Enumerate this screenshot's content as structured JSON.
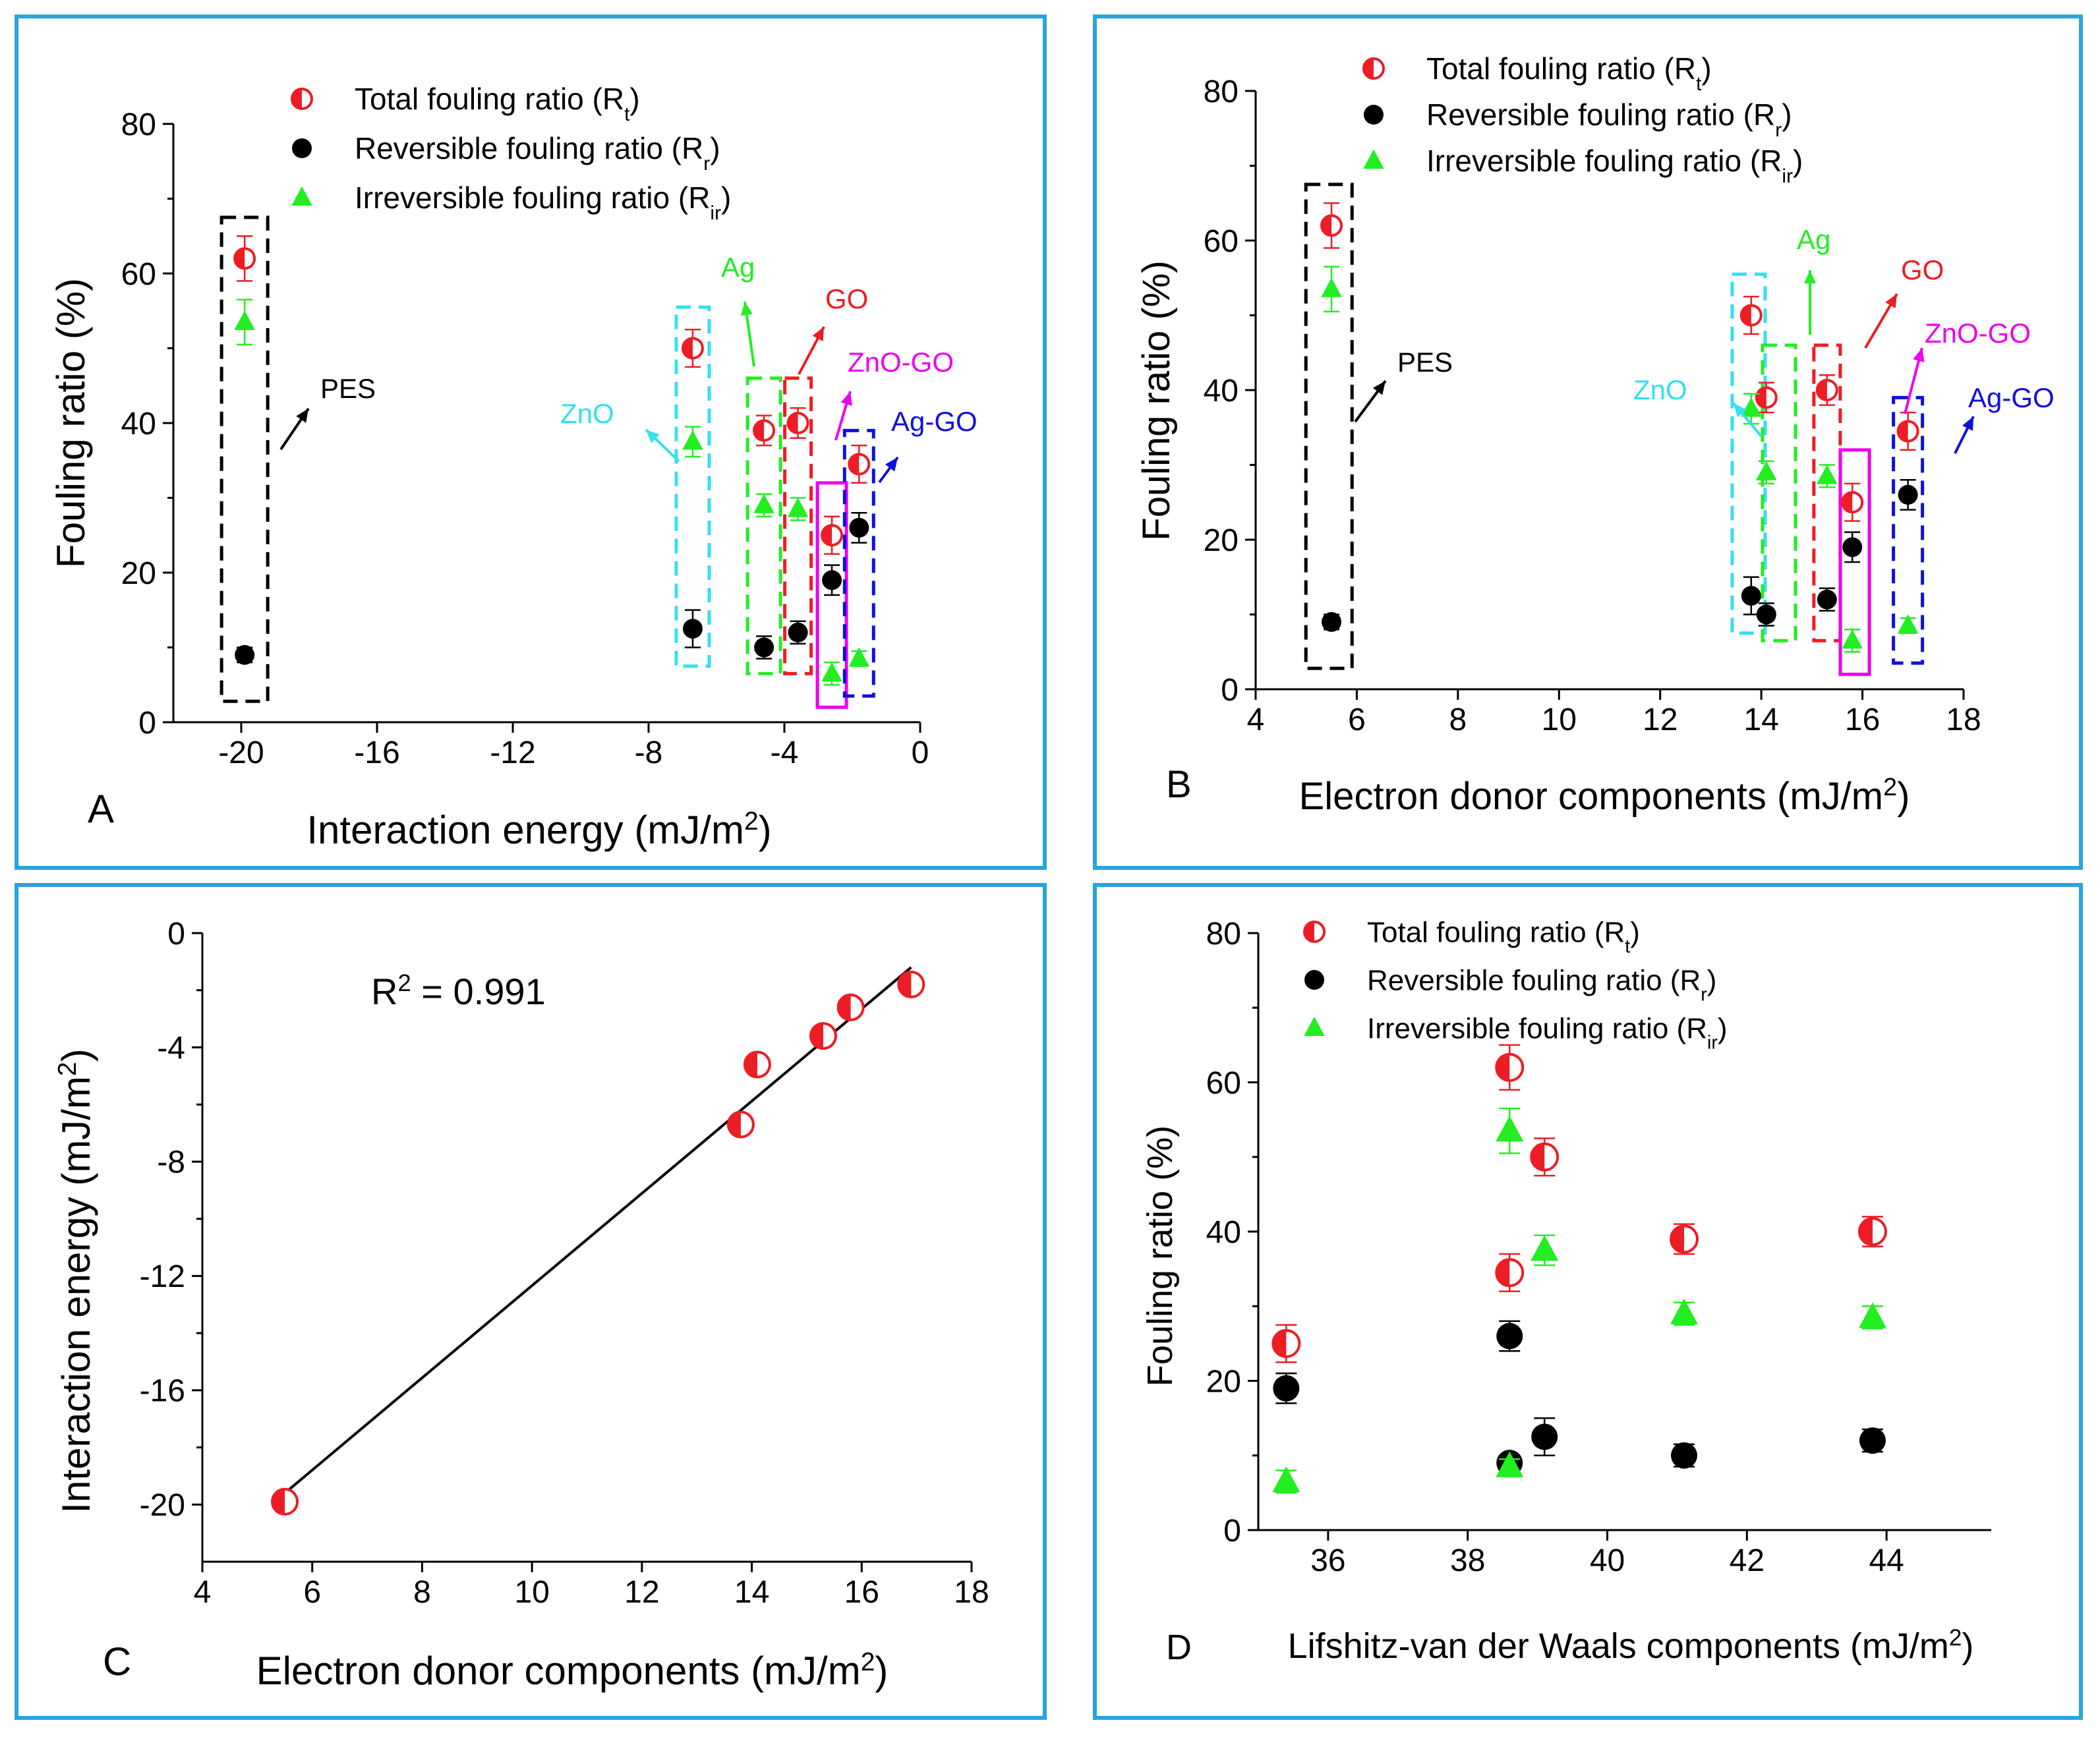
{
  "colors": {
    "red": "#ee1c24",
    "black": "#000000",
    "green": "#22ee22",
    "cyan": "#33e0f0",
    "magenta": "#ee00ee",
    "blue": "#1010dd",
    "frame": "#2aa4dc"
  },
  "legend": {
    "total": "Total fouling ratio (R",
    "total_sub": "t",
    "reversible": "Reversible fouling ratio (R",
    "reversible_sub": "r",
    "irreversible": "Irreversible fouling ratio (R",
    "irreversible_sub": "ir",
    "close": ")"
  },
  "annotations": {
    "pes": "PES",
    "zno": "ZnO",
    "ag": "Ag",
    "go": "GO",
    "zno_go": "ZnO-GO",
    "ag_go": "Ag-GO"
  },
  "chart_data": [
    {
      "id": "A",
      "type": "scatter",
      "panel_letter": "A",
      "xlabel": "Interaction energy (mJ/m",
      "xlabel_sup": "2",
      "xlabel_close": ")",
      "ylabel": "Fouling ratio (%)",
      "xlim": [
        -22,
        0
      ],
      "ylim": [
        0,
        80
      ],
      "xticks": [
        -20,
        -16,
        -12,
        -8,
        -4,
        0
      ],
      "yticks": [
        0,
        20,
        40,
        60,
        80
      ],
      "series": [
        {
          "name": "Total fouling ratio (Rt)",
          "key": "total",
          "x": [
            -19.9,
            -6.7,
            -4.6,
            -3.6,
            -2.6,
            -1.8
          ],
          "y": [
            62,
            50,
            39,
            40,
            25,
            34.5
          ],
          "err": [
            3,
            2.5,
            2,
            2,
            2.5,
            2.5
          ]
        },
        {
          "name": "Reversible fouling ratio (Rr)",
          "key": "reversible",
          "x": [
            -19.9,
            -6.7,
            -4.6,
            -3.6,
            -2.6,
            -1.8
          ],
          "y": [
            9,
            12.5,
            10,
            12,
            19,
            26
          ],
          "err": [
            1,
            2.5,
            1.5,
            1.5,
            2,
            2
          ]
        },
        {
          "name": "Irreversible fouling ratio (Rir)",
          "key": "irreversible",
          "x": [
            -19.9,
            -6.7,
            -4.6,
            -3.6,
            -2.6,
            -1.8
          ],
          "y": [
            53.5,
            37.5,
            29,
            28.5,
            6.5,
            8.5
          ],
          "err": [
            3,
            2,
            1.5,
            1.5,
            1.5,
            1
          ]
        }
      ]
    },
    {
      "id": "B",
      "type": "scatter",
      "panel_letter": "B",
      "xlabel": "Electron donor components (mJ/m",
      "xlabel_sup": "2",
      "xlabel_close": ")",
      "ylabel": "Fouling ratio (%)",
      "xlim": [
        4,
        18
      ],
      "ylim": [
        0,
        80
      ],
      "xticks": [
        4,
        6,
        8,
        10,
        12,
        14,
        16,
        18
      ],
      "yticks": [
        0,
        20,
        40,
        60,
        80
      ],
      "series": [
        {
          "name": "Total fouling ratio (Rt)",
          "key": "total",
          "x": [
            5.5,
            13.8,
            14.1,
            15.3,
            15.8,
            16.9
          ],
          "y": [
            62,
            50,
            39,
            40,
            25,
            34.5
          ],
          "err": [
            3,
            2.5,
            2,
            2,
            2.5,
            2.5
          ]
        },
        {
          "name": "Reversible fouling ratio (Rr)",
          "key": "reversible",
          "x": [
            5.5,
            13.8,
            14.1,
            15.3,
            15.8,
            16.9
          ],
          "y": [
            9,
            12.5,
            10,
            12,
            19,
            26
          ],
          "err": [
            1,
            2.5,
            1.5,
            1.5,
            2,
            2
          ]
        },
        {
          "name": "Irreversible fouling ratio (Rir)",
          "key": "irreversible",
          "x": [
            5.5,
            13.8,
            14.1,
            15.3,
            15.8,
            16.9
          ],
          "y": [
            53.5,
            37.5,
            29,
            28.5,
            6.5,
            8.5
          ],
          "err": [
            3,
            2,
            1.5,
            1.5,
            1.5,
            1
          ]
        }
      ]
    },
    {
      "id": "C",
      "type": "scatter",
      "panel_letter": "C",
      "xlabel": "Electron donor components (mJ/m",
      "xlabel_sup": "2",
      "xlabel_close": ")",
      "ylabel": "Interaction energy (mJ/m",
      "ylabel_sup": "2",
      "ylabel_close": ")",
      "annotation_r2": "R",
      "annotation_r2_sup": "2",
      "annotation_r2_rest": " = 0.991",
      "xlim": [
        4,
        18
      ],
      "ylim": [
        -22,
        0
      ],
      "xticks": [
        4,
        6,
        8,
        10,
        12,
        14,
        16,
        18
      ],
      "yticks": [
        0,
        -4,
        -8,
        -12,
        -16,
        -20
      ],
      "series": [
        {
          "name": "Interaction energy",
          "key": "total",
          "x": [
            5.5,
            13.8,
            14.1,
            15.3,
            15.8,
            16.9
          ],
          "y": [
            -19.9,
            -6.7,
            -4.6,
            -3.6,
            -2.6,
            -1.8
          ]
        }
      ],
      "fit_line": {
        "x": [
          5.5,
          16.9
        ],
        "y": [
          -19.6,
          -1.2
        ]
      }
    },
    {
      "id": "D",
      "type": "scatter",
      "panel_letter": "D",
      "xlabel": "Lifshitz-van der Waals components (mJ/m",
      "xlabel_sup": "2",
      "xlabel_close": ")",
      "ylabel": "Fouling ratio (%)",
      "xlim": [
        35,
        45.5
      ],
      "ylim": [
        0,
        80
      ],
      "xticks": [
        36,
        38,
        40,
        42,
        44
      ],
      "yticks": [
        0,
        20,
        40,
        60,
        80
      ],
      "series": [
        {
          "name": "Total fouling ratio (Rt)",
          "key": "total",
          "x": [
            38.6,
            39.1,
            41.1,
            43.8,
            35.4,
            38.6
          ],
          "y": [
            62,
            50,
            39,
            40,
            25,
            34.5
          ],
          "err": [
            3,
            2.5,
            2,
            2,
            2.5,
            2.5
          ]
        },
        {
          "name": "Reversible fouling ratio (Rr)",
          "key": "reversible",
          "x": [
            38.6,
            39.1,
            41.1,
            43.8,
            35.4,
            38.6
          ],
          "y": [
            9,
            12.5,
            10,
            12,
            19,
            26
          ],
          "err": [
            1,
            2.5,
            1.5,
            1.5,
            2,
            2
          ]
        },
        {
          "name": "Irreversible fouling ratio (Rir)",
          "key": "irreversible",
          "x": [
            38.6,
            39.1,
            41.1,
            43.8,
            35.4,
            38.6
          ],
          "y": [
            53.5,
            37.5,
            29,
            28.5,
            6.5,
            8.5
          ],
          "err": [
            3,
            2,
            1.5,
            1.5,
            1.5,
            1
          ]
        }
      ]
    }
  ]
}
